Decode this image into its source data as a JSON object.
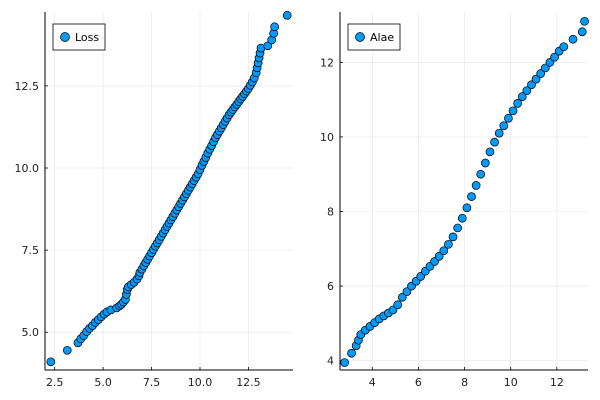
{
  "chart_data": [
    {
      "type": "scatter",
      "title": "",
      "xlabel": "",
      "ylabel": "",
      "xlim": [
        2.0,
        14.8
      ],
      "ylim": [
        3.85,
        14.75
      ],
      "xticks": [
        2.5,
        5.0,
        7.5,
        10.0,
        12.5
      ],
      "xtick_labels": [
        "2.5",
        "5.0",
        "7.5",
        "10.0",
        "12.5"
      ],
      "yticks": [
        5.0,
        7.5,
        10.0,
        12.5
      ],
      "ytick_labels": [
        "5.0",
        "7.5",
        "10.0",
        "12.5"
      ],
      "grid": true,
      "legend_position": "top-left",
      "marker_color": "#009AFA",
      "series": [
        {
          "name": "Loss",
          "points": [
            [
              2.3,
              4.1
            ],
            [
              3.15,
              4.45
            ],
            [
              3.7,
              4.68
            ],
            [
              3.85,
              4.8
            ],
            [
              4.0,
              4.9
            ],
            [
              4.15,
              5.02
            ],
            [
              4.3,
              5.12
            ],
            [
              4.45,
              5.2
            ],
            [
              4.6,
              5.3
            ],
            [
              4.75,
              5.38
            ],
            [
              4.9,
              5.47
            ],
            [
              5.05,
              5.55
            ],
            [
              5.2,
              5.62
            ],
            [
              5.4,
              5.68
            ],
            [
              5.7,
              5.74
            ],
            [
              5.85,
              5.8
            ],
            [
              5.95,
              5.85
            ],
            [
              6.05,
              5.92
            ],
            [
              6.15,
              6.0
            ],
            [
              6.2,
              6.15
            ],
            [
              6.25,
              6.3
            ],
            [
              6.3,
              6.38
            ],
            [
              6.45,
              6.45
            ],
            [
              6.6,
              6.52
            ],
            [
              6.75,
              6.62
            ],
            [
              6.85,
              6.72
            ],
            [
              6.9,
              6.82
            ],
            [
              7.0,
              6.92
            ],
            [
              7.1,
              7.02
            ],
            [
              7.2,
              7.12
            ],
            [
              7.3,
              7.22
            ],
            [
              7.4,
              7.32
            ],
            [
              7.5,
              7.42
            ],
            [
              7.6,
              7.52
            ],
            [
              7.7,
              7.62
            ],
            [
              7.8,
              7.72
            ],
            [
              7.9,
              7.82
            ],
            [
              8.0,
              7.92
            ],
            [
              8.1,
              8.02
            ],
            [
              8.2,
              8.12
            ],
            [
              8.3,
              8.22
            ],
            [
              8.4,
              8.32
            ],
            [
              8.5,
              8.42
            ],
            [
              8.6,
              8.52
            ],
            [
              8.7,
              8.62
            ],
            [
              8.8,
              8.72
            ],
            [
              8.9,
              8.82
            ],
            [
              9.0,
              8.92
            ],
            [
              9.1,
              9.02
            ],
            [
              9.2,
              9.12
            ],
            [
              9.3,
              9.22
            ],
            [
              9.4,
              9.32
            ],
            [
              9.5,
              9.42
            ],
            [
              9.6,
              9.52
            ],
            [
              9.7,
              9.62
            ],
            [
              9.8,
              9.72
            ],
            [
              9.9,
              9.82
            ],
            [
              10.0,
              9.95
            ],
            [
              10.1,
              10.08
            ],
            [
              10.2,
              10.2
            ],
            [
              10.3,
              10.32
            ],
            [
              10.4,
              10.45
            ],
            [
              10.5,
              10.57
            ],
            [
              10.6,
              10.68
            ],
            [
              10.7,
              10.8
            ],
            [
              10.8,
              10.92
            ],
            [
              10.9,
              11.02
            ],
            [
              11.0,
              11.12
            ],
            [
              11.1,
              11.22
            ],
            [
              11.2,
              11.32
            ],
            [
              11.3,
              11.42
            ],
            [
              11.4,
              11.52
            ],
            [
              11.5,
              11.62
            ],
            [
              11.6,
              11.7
            ],
            [
              11.7,
              11.78
            ],
            [
              11.8,
              11.86
            ],
            [
              11.9,
              11.94
            ],
            [
              12.0,
              12.02
            ],
            [
              12.1,
              12.1
            ],
            [
              12.2,
              12.18
            ],
            [
              12.3,
              12.26
            ],
            [
              12.4,
              12.34
            ],
            [
              12.5,
              12.42
            ],
            [
              12.6,
              12.52
            ],
            [
              12.7,
              12.62
            ],
            [
              12.8,
              12.74
            ],
            [
              12.9,
              12.9
            ],
            [
              12.95,
              13.05
            ],
            [
              13.0,
              13.2
            ],
            [
              13.05,
              13.35
            ],
            [
              13.1,
              13.5
            ],
            [
              13.15,
              13.65
            ],
            [
              13.5,
              13.72
            ],
            [
              13.7,
              13.9
            ],
            [
              13.8,
              14.1
            ],
            [
              13.85,
              14.3
            ],
            [
              14.5,
              14.65
            ]
          ]
        }
      ]
    },
    {
      "type": "scatter",
      "title": "",
      "xlabel": "",
      "ylabel": "",
      "xlim": [
        2.6,
        13.35
      ],
      "ylim": [
        3.75,
        13.35
      ],
      "xticks": [
        4,
        6,
        8,
        10,
        12
      ],
      "xtick_labels": [
        "4",
        "6",
        "8",
        "10",
        "12"
      ],
      "yticks": [
        4,
        6,
        8,
        10,
        12
      ],
      "ytick_labels": [
        "4",
        "6",
        "8",
        "10",
        "12"
      ],
      "grid": true,
      "legend_position": "top-left",
      "marker_color": "#009AFA",
      "series": [
        {
          "name": "Alae",
          "points": [
            [
              2.8,
              3.95
            ],
            [
              3.1,
              4.2
            ],
            [
              3.3,
              4.4
            ],
            [
              3.4,
              4.55
            ],
            [
              3.5,
              4.7
            ],
            [
              3.7,
              4.82
            ],
            [
              3.9,
              4.92
            ],
            [
              4.1,
              5.02
            ],
            [
              4.3,
              5.12
            ],
            [
              4.5,
              5.2
            ],
            [
              4.7,
              5.28
            ],
            [
              4.9,
              5.36
            ],
            [
              5.1,
              5.5
            ],
            [
              5.3,
              5.7
            ],
            [
              5.5,
              5.85
            ],
            [
              5.7,
              6.0
            ],
            [
              5.9,
              6.13
            ],
            [
              6.1,
              6.26
            ],
            [
              6.3,
              6.4
            ],
            [
              6.5,
              6.53
            ],
            [
              6.7,
              6.66
            ],
            [
              6.9,
              6.8
            ],
            [
              7.1,
              6.95
            ],
            [
              7.3,
              7.12
            ],
            [
              7.5,
              7.32
            ],
            [
              7.7,
              7.56
            ],
            [
              7.9,
              7.82
            ],
            [
              8.1,
              8.1
            ],
            [
              8.3,
              8.4
            ],
            [
              8.5,
              8.7
            ],
            [
              8.7,
              9.0
            ],
            [
              8.9,
              9.3
            ],
            [
              9.1,
              9.6
            ],
            [
              9.3,
              9.86
            ],
            [
              9.5,
              10.1
            ],
            [
              9.7,
              10.3
            ],
            [
              9.9,
              10.5
            ],
            [
              10.1,
              10.7
            ],
            [
              10.3,
              10.9
            ],
            [
              10.5,
              11.08
            ],
            [
              10.7,
              11.24
            ],
            [
              10.9,
              11.4
            ],
            [
              11.1,
              11.55
            ],
            [
              11.3,
              11.7
            ],
            [
              11.5,
              11.85
            ],
            [
              11.7,
              12.0
            ],
            [
              11.9,
              12.14
            ],
            [
              12.1,
              12.3
            ],
            [
              12.3,
              12.42
            ],
            [
              12.7,
              12.62
            ],
            [
              13.1,
              12.82
            ],
            [
              13.2,
              13.1
            ]
          ]
        }
      ]
    }
  ]
}
